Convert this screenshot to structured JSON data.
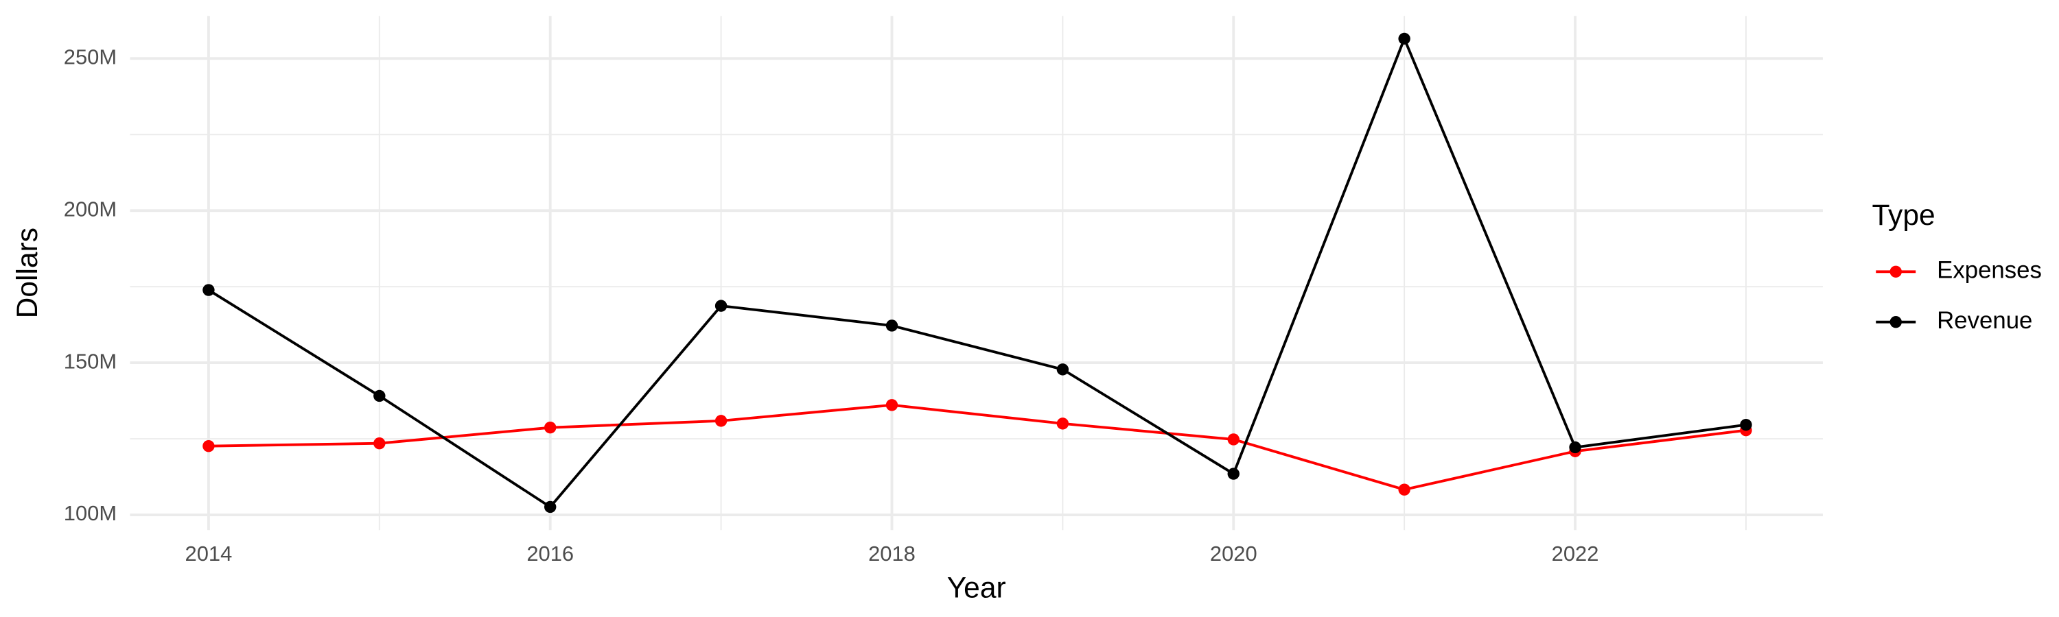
{
  "chart_data": {
    "type": "line",
    "x_label": "Year",
    "y_label": "Dollars",
    "x": [
      2014,
      2015,
      2016,
      2017,
      2018,
      2019,
      2020,
      2021,
      2022,
      2023
    ],
    "series": [
      {
        "name": "Expenses",
        "color": "#ff0000",
        "values": [
          122.6,
          123.5,
          128.7,
          130.9,
          136.1,
          130.0,
          124.8,
          108.3,
          120.9,
          127.8
        ]
      },
      {
        "name": "Revenue",
        "color": "#000000",
        "values": [
          173.9,
          139.1,
          102.6,
          168.7,
          162.2,
          147.8,
          113.5,
          256.5,
          122.2,
          129.6
        ]
      }
    ],
    "xlim": [
      2013.54,
      2023.45
    ],
    "xticks": [
      2014,
      2016,
      2018,
      2020,
      2022
    ],
    "ylim": [
      95,
      264
    ],
    "yticks": [
      {
        "value": 100,
        "label": "100M"
      },
      {
        "value": 150,
        "label": "150M"
      },
      {
        "value": 200,
        "label": "200M"
      },
      {
        "value": 250,
        "label": "250M"
      }
    ],
    "grid": true,
    "legend_title": "Type",
    "legend_position": "right"
  }
}
